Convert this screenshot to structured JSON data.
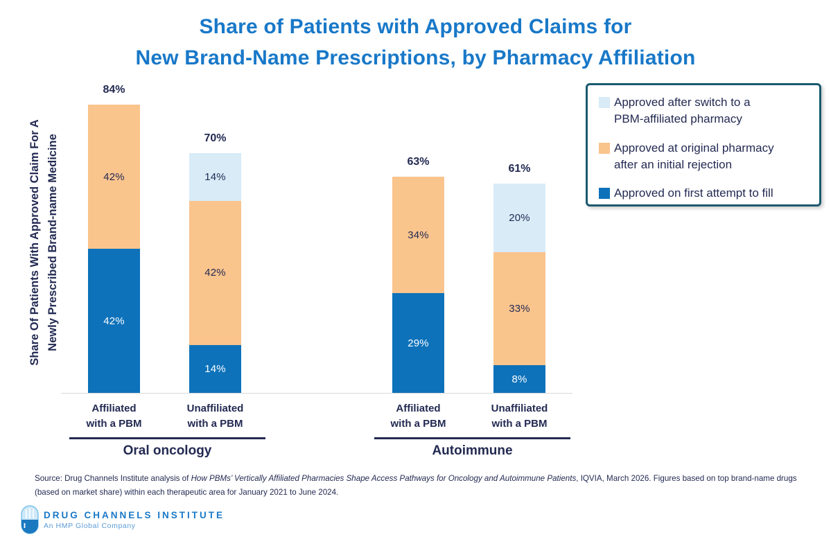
{
  "title": {
    "text": "Share of Patients with Approved Claims for\nNew Brand-Name Prescriptions, by Pharmacy Affiliation"
  },
  "legend": {
    "items": [
      {
        "label": "Approved after switch to a\nPBM-affiliated pharmacy",
        "series": "switch"
      },
      {
        "label": "Approved at original pharmacy\nafter an initial rejection",
        "series": "after_rejection"
      },
      {
        "label": "Approved on first attempt to fill",
        "series": "first_attempt"
      }
    ]
  },
  "chart_data": {
    "type": "bar",
    "stacked": true,
    "ylabel": "Share Of Patients With Approved Claim For A\nNewly Prescribed Brand-name Medicine",
    "ylim": [
      0,
      100
    ],
    "grid": false,
    "legend_position": "top-right",
    "series": [
      {
        "id": "switch",
        "name": "Approved after switch to a PBM-affiliated pharmacy",
        "color": "#D8EBF7",
        "label_color": "#232A52"
      },
      {
        "id": "after_rejection",
        "name": "Approved at original pharmacy after an initial rejection",
        "color": "#FAC48D",
        "label_color": "#232A52"
      },
      {
        "id": "first_attempt",
        "name": "Approved on first attempt to fill",
        "color": "#0D72BA",
        "label_color": "#FFFFFF"
      }
    ],
    "groups": [
      {
        "label": "Oral oncology",
        "bars": [
          {
            "label": "Affiliated\nwith a PBM",
            "total": "84%",
            "segments": [
              {
                "series": "first_attempt",
                "value": 42,
                "label": "42%"
              },
              {
                "series": "after_rejection",
                "value": 42,
                "label": "42%"
              }
            ]
          },
          {
            "label": "Unaffiliated\nwith a PBM",
            "total": "70%",
            "segments": [
              {
                "series": "first_attempt",
                "value": 14,
                "label": "14%"
              },
              {
                "series": "after_rejection",
                "value": 42,
                "label": "42%"
              },
              {
                "series": "switch",
                "value": 14,
                "label": "14%"
              }
            ]
          }
        ]
      },
      {
        "label": "Autoimmune",
        "bars": [
          {
            "label": "Affiliated\nwith a PBM",
            "total": "63%",
            "segments": [
              {
                "series": "first_attempt",
                "value": 29,
                "label": "29%"
              },
              {
                "series": "after_rejection",
                "value": 34,
                "label": "34%"
              }
            ]
          },
          {
            "label": "Unaffiliated\nwith a PBM",
            "total": "61%",
            "segments": [
              {
                "series": "first_attempt",
                "value": 8,
                "label": "8%"
              },
              {
                "series": "after_rejection",
                "value": 33,
                "label": "33%"
              },
              {
                "series": "switch",
                "value": 20,
                "label": "20%"
              }
            ]
          }
        ]
      }
    ]
  },
  "source": {
    "prefix": "Source: Drug Channels Institute analysis of ",
    "italic_title": "How PBMs’ Vertically Affiliated Pharmacies Shape Access Pathways for Oncology and Autoimmune Patients",
    "suffix": ", IQVIA, March 2026. Figures based on top brand-name drugs (based on market share) within each therapeutic area for January 2021 to June 2024."
  },
  "footer_logo": {
    "name": "DRUG CHANNELS INSTITUTE",
    "tagline": "An HMP Global Company",
    "icon": "pill-capsule-icon"
  },
  "colors": {
    "title_blue": "#1878C8",
    "bar_blue": "#0D72BA",
    "bar_orange": "#FAC48D",
    "bar_light_blue": "#D8EBF7",
    "navy_text": "#232A52",
    "legend_border": "#1A5A6E",
    "axis_line": "#D8D8D8",
    "logo_blue": "#1878C8",
    "logo_light_blue": "#5C9BD5"
  }
}
